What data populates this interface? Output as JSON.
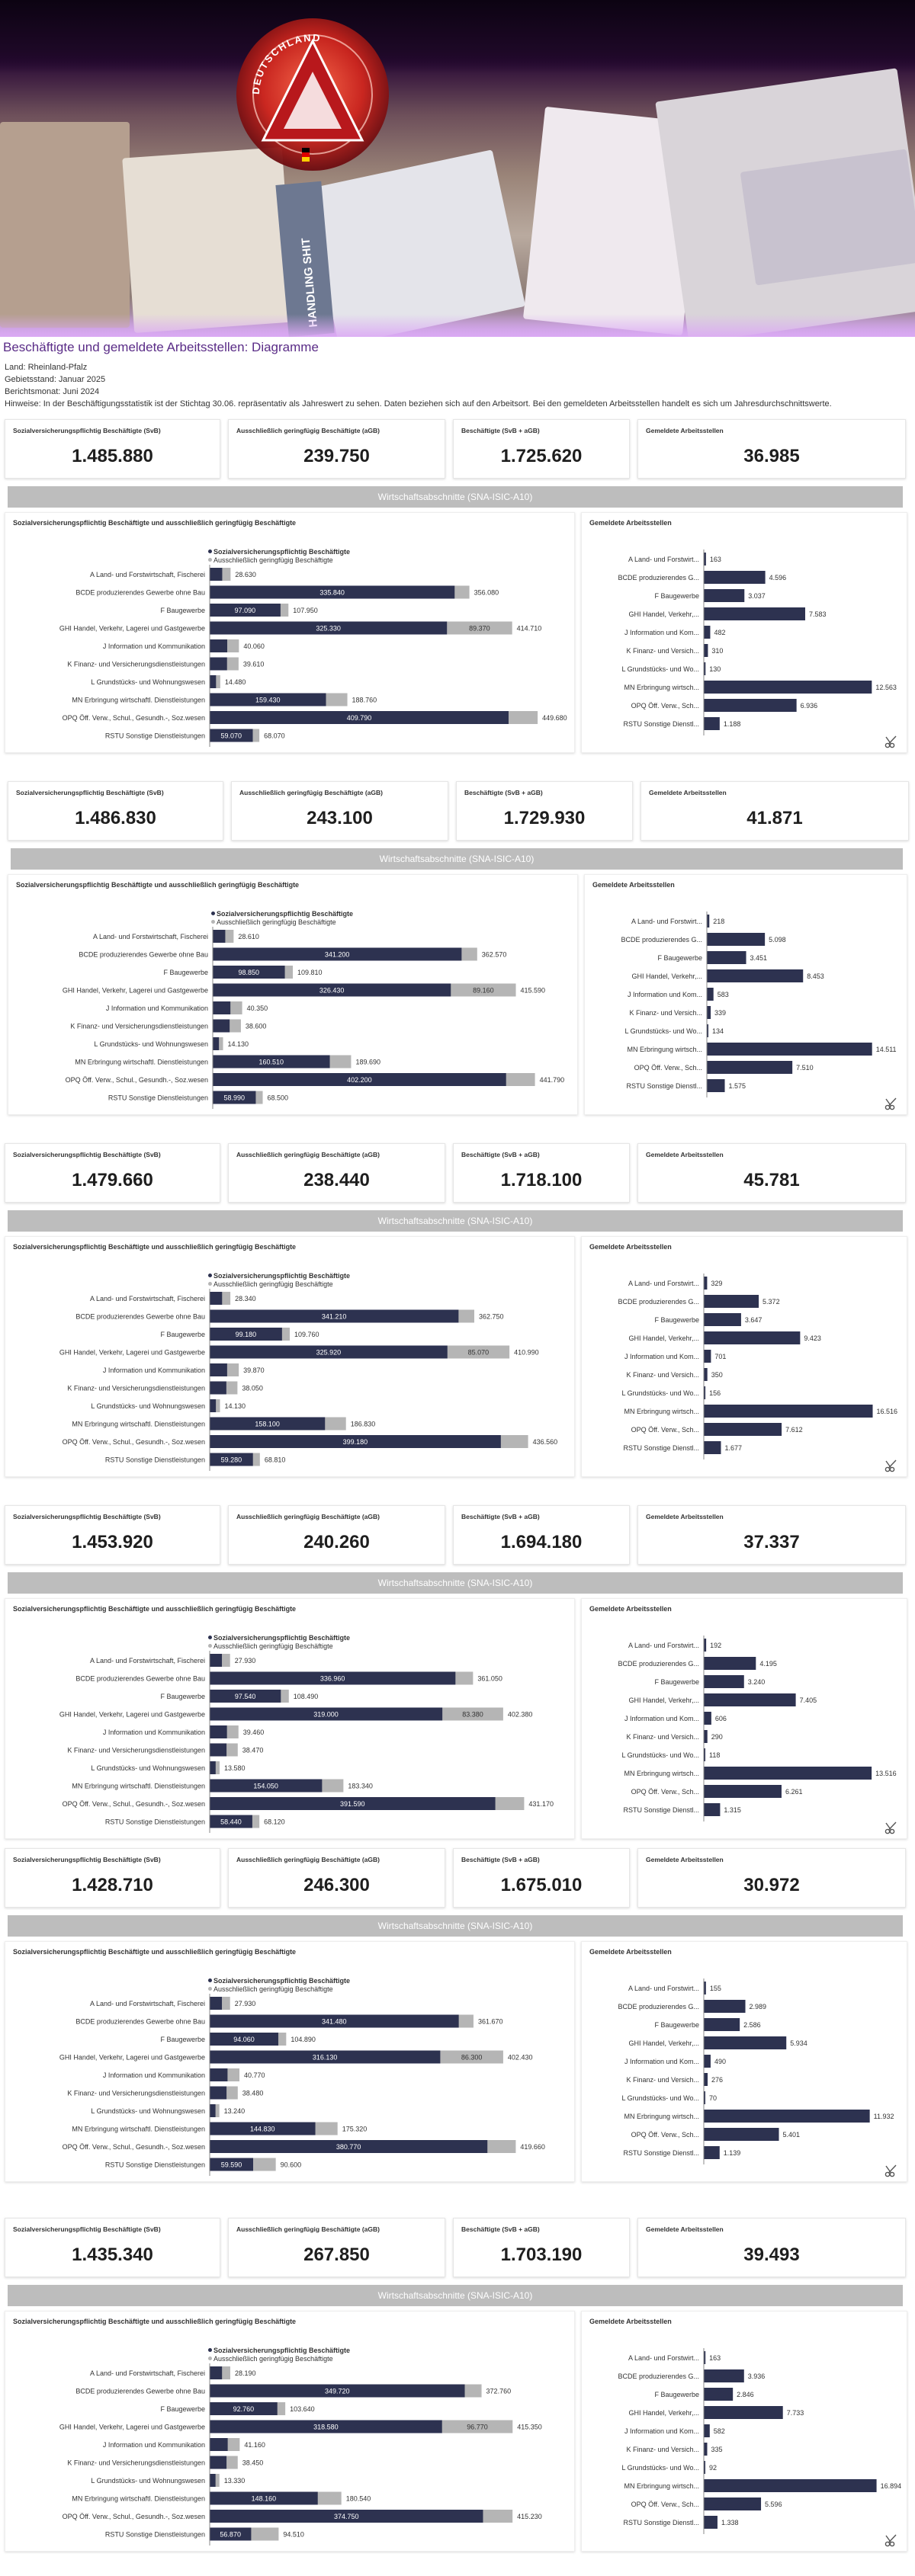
{
  "page": {
    "title": "Beschäftigte und gemeldete Arbeitsstellen: Diagramme",
    "meta": [
      "Land: Rheinland-Pfalz",
      "Gebietsstand: Januar 2025",
      "Berichtsmonat: Juni 2024",
      "Hinweise: In der Beschäftigungsstatistik ist der Stichtag 30.06. repräsentativ als Jahreswert zu sehen. Daten beziehen sich auf den Arbeitsort. Bei den gemeldeten Arbeitsstellen handelt es sich um Jahresdurchschnittswerte."
    ],
    "banner_text": {
      "side_sign": "HANDLING SHIT",
      "logo_ring": "DEUTSCHLAND"
    }
  },
  "kpi_labels": [
    "Sozialversicherungspflichtig Beschäftigte (SvB)",
    "Ausschließlich geringfügig Beschäftigte (aGB)",
    "Beschäftigte (SvB + aGB)",
    "Gemeldete Arbeitsstellen"
  ],
  "section_title": "Wirtschaftsabschnitte (SNA-ISIC-A10)",
  "left_chart_title": "Sozialversicherungspflichtig Beschäftigte und ausschließlich geringfügig Beschäftigte",
  "right_chart_title": "Gemeldete Arbeitsstellen",
  "legend": [
    "Sozialversicherungspflichtig Beschäftigte",
    "Ausschließlich geringfügig Beschäftigte"
  ],
  "colors": {
    "svb": "#2d3250",
    "agb": "#b5b5b5",
    "accent_title": "#5a2c87"
  },
  "icons": [
    "scissors-icon",
    "logo-emblem"
  ],
  "chart_data": [
    {
      "type": "bar",
      "kpi": [
        "1.485.880",
        "239.750",
        "1.725.620",
        "36.985"
      ],
      "categories": [
        "A Land- und Forstwirtschaft, Fischerei",
        "BCDE produzierendes Gewerbe ohne Bau",
        "F Baugewerbe",
        "GHI Handel, Verkehr, Lagerei und Gastgewerbe",
        "J Information und Kommunikation",
        "K Finanz- und Versicherungsdienstleistungen",
        "L Grundstücks- und Wohnungswesen",
        "MN Erbringung wirtschaftl. Dienstleistungen",
        "OPQ Öff. Verw., Schul., Gesundh.-, Soz.wesen",
        "RSTU Sonstige Dienstleistungen"
      ],
      "svb": [
        null,
        335840,
        97090,
        325330,
        null,
        null,
        null,
        159430,
        409790,
        59070
      ],
      "totals": [
        28630,
        356080,
        107950,
        414710,
        40060,
        39610,
        14480,
        188760,
        449680,
        68070
      ],
      "agb_labels": [
        null,
        null,
        null,
        89370,
        null,
        null,
        null,
        null,
        null,
        null
      ],
      "jobs_categories": [
        "A Land- und Forstwirt...",
        "BCDE produzierendes G...",
        "F Baugewerbe",
        "GHI Handel, Verkehr,...",
        "J Information und Kom...",
        "K Finanz- und Versich...",
        "L Grundstücks- und Wo...",
        "MN Erbringung wirtsch...",
        "OPQ Öff. Verw., Sch...",
        "RSTU Sonstige Dienstl..."
      ],
      "jobs": [
        163,
        4596,
        3037,
        7583,
        482,
        310,
        130,
        12563,
        6936,
        1188
      ],
      "xlim": [
        0,
        460000
      ],
      "jobs_xlim": [
        0,
        13000
      ]
    },
    {
      "type": "bar",
      "kpi": [
        "1.486.830",
        "243.100",
        "1.729.930",
        "41.871"
      ],
      "categories": [
        "A Land- und Forstwirtschaft, Fischerei",
        "BCDE produzierendes Gewerbe ohne Bau",
        "F Baugewerbe",
        "GHI Handel, Verkehr, Lagerei und Gastgewerbe",
        "J Information und Kommunikation",
        "K Finanz- und Versicherungsdienstleistungen",
        "L Grundstücks- und Wohnungswesen",
        "MN Erbringung wirtschaftl. Dienstleistungen",
        "OPQ Öff. Verw., Schul., Gesundh.-, Soz.wesen",
        "RSTU Sonstige Dienstleistungen"
      ],
      "svb": [
        null,
        341200,
        98850,
        326430,
        null,
        null,
        null,
        160510,
        402200,
        58990
      ],
      "totals": [
        28610,
        362570,
        109810,
        415590,
        40350,
        38600,
        14130,
        189690,
        441790,
        68500
      ],
      "agb_labels": [
        null,
        null,
        null,
        89160,
        null,
        null,
        null,
        null,
        null,
        null
      ],
      "jobs_categories": [
        "A Land- und Forstwirt...",
        "BCDE produzierendes G...",
        "F Baugewerbe",
        "GHI Handel, Verkehr,...",
        "J Information und Kom...",
        "K Finanz- und Versich...",
        "L Grundstücks- und Wo...",
        "MN Erbringung wirtsch...",
        "OPQ Öff. Verw., Sch...",
        "RSTU Sonstige Dienstl..."
      ],
      "jobs": [
        218,
        5098,
        3451,
        8453,
        583,
        339,
        134,
        14511,
        7510,
        1575
      ],
      "xlim": [
        0,
        460000
      ],
      "jobs_xlim": [
        0,
        15000
      ]
    },
    {
      "type": "bar",
      "kpi": [
        "1.479.660",
        "238.440",
        "1.718.100",
        "45.781"
      ],
      "categories": [
        "A Land- und Forstwirtschaft, Fischerei",
        "BCDE produzierendes Gewerbe ohne Bau",
        "F Baugewerbe",
        "GHI Handel, Verkehr, Lagerei und Gastgewerbe",
        "J Information und Kommunikation",
        "K Finanz- und Versicherungsdienstleistungen",
        "L Grundstücks- und Wohnungswesen",
        "MN Erbringung wirtschaftl. Dienstleistungen",
        "OPQ Öff. Verw., Schul., Gesundh.-, Soz.wesen",
        "RSTU Sonstige Dienstleistungen"
      ],
      "svb": [
        null,
        341210,
        99180,
        325920,
        null,
        null,
        null,
        158100,
        399180,
        59280
      ],
      "totals": [
        28340,
        362750,
        109760,
        410990,
        39870,
        38050,
        14130,
        186830,
        436560,
        68810
      ],
      "agb_labels": [
        null,
        null,
        null,
        85070,
        null,
        null,
        null,
        null,
        null,
        null
      ],
      "jobs_categories": [
        "A Land- und Forstwirt...",
        "BCDE produzierendes G...",
        "F Baugewerbe",
        "GHI Handel, Verkehr,...",
        "J Information und Kom...",
        "K Finanz- und Versich...",
        "L Grundstücks- und Wo...",
        "MN Erbringung wirtsch...",
        "OPQ Öff. Verw., Sch...",
        "RSTU Sonstige Dienstl..."
      ],
      "jobs": [
        329,
        5372,
        3647,
        9423,
        701,
        350,
        156,
        16516,
        7612,
        1677
      ],
      "xlim": [
        0,
        460000
      ],
      "jobs_xlim": [
        0,
        17000
      ]
    },
    {
      "type": "bar",
      "kpi": [
        "1.453.920",
        "240.260",
        "1.694.180",
        "37.337"
      ],
      "categories": [
        "A Land- und Forstwirtschaft, Fischerei",
        "BCDE produzierendes Gewerbe ohne Bau",
        "F Baugewerbe",
        "GHI Handel, Verkehr, Lagerei und Gastgewerbe",
        "J Information und Kommunikation",
        "K Finanz- und Versicherungsdienstleistungen",
        "L Grundstücks- und Wohnungswesen",
        "MN Erbringung wirtschaftl. Dienstleistungen",
        "OPQ Öff. Verw., Schul., Gesundh.-, Soz.wesen",
        "RSTU Sonstige Dienstleistungen"
      ],
      "svb": [
        null,
        336960,
        97540,
        319000,
        null,
        null,
        null,
        154050,
        391590,
        58440
      ],
      "totals": [
        27930,
        361050,
        108490,
        402380,
        39460,
        38470,
        13580,
        183340,
        431170,
        68120
      ],
      "agb_labels": [
        null,
        null,
        null,
        83380,
        null,
        null,
        null,
        null,
        null,
        null
      ],
      "jobs_categories": [
        "A Land- und Forstwirt...",
        "BCDE produzierendes G...",
        "F Baugewerbe",
        "GHI Handel, Verkehr,...",
        "J Information und Kom...",
        "K Finanz- und Versich...",
        "L Grundstücks- und Wo...",
        "MN Erbringung wirtsch...",
        "OPQ Öff. Verw., Sch...",
        "RSTU Sonstige Dienstl..."
      ],
      "jobs": [
        192,
        4195,
        3240,
        7405,
        606,
        290,
        118,
        13516,
        6261,
        1315
      ],
      "xlim": [
        0,
        460000
      ],
      "jobs_xlim": [
        0,
        14000
      ]
    },
    {
      "type": "bar",
      "kpi": [
        "1.428.710",
        "246.300",
        "1.675.010",
        "30.972"
      ],
      "categories": [
        "A Land- und Forstwirtschaft, Fischerei",
        "BCDE produzierendes Gewerbe ohne Bau",
        "F Baugewerbe",
        "GHI Handel, Verkehr, Lagerei und Gastgewerbe",
        "J Information und Kommunikation",
        "K Finanz- und Versicherungsdienstleistungen",
        "L Grundstücks- und Wohnungswesen",
        "MN Erbringung wirtschaftl. Dienstleistungen",
        "OPQ Öff. Verw., Schul., Gesundh.-, Soz.wesen",
        "RSTU Sonstige Dienstleistungen"
      ],
      "svb": [
        null,
        341480,
        94060,
        316130,
        null,
        null,
        null,
        144830,
        380770,
        59590
      ],
      "totals": [
        27930,
        361670,
        104890,
        402430,
        40770,
        38480,
        13240,
        175320,
        419660,
        90600
      ],
      "agb_labels": [
        null,
        null,
        null,
        86300,
        null,
        null,
        null,
        null,
        null,
        null
      ],
      "jobs_categories": [
        "A Land- und Forstwirt...",
        "BCDE produzierendes G...",
        "F Baugewerbe",
        "GHI Handel, Verkehr,...",
        "J Information und Kom...",
        "K Finanz- und Versich...",
        "L Grundstücks- und Wo...",
        "MN Erbringung wirtsch...",
        "OPQ Öff. Verw., Sch...",
        "RSTU Sonstige Dienstl..."
      ],
      "jobs": [
        155,
        2989,
        2586,
        5934,
        490,
        276,
        70,
        11932,
        5401,
        1139
      ],
      "xlim": [
        0,
        460000
      ],
      "jobs_xlim": [
        0,
        12500
      ]
    },
    {
      "type": "bar",
      "kpi": [
        "1.435.340",
        "267.850",
        "1.703.190",
        "39.493"
      ],
      "categories": [
        "A Land- und Forstwirtschaft, Fischerei",
        "BCDE produzierendes Gewerbe ohne Bau",
        "F Baugewerbe",
        "GHI Handel, Verkehr, Lagerei und Gastgewerbe",
        "J Information und Kommunikation",
        "K Finanz- und Versicherungsdienstleistungen",
        "L Grundstücks- und Wohnungswesen",
        "MN Erbringung wirtschaftl. Dienstleistungen",
        "OPQ Öff. Verw., Schul., Gesundh.-, Soz.wesen",
        "RSTU Sonstige Dienstleistungen"
      ],
      "svb": [
        null,
        349720,
        92760,
        318580,
        null,
        null,
        null,
        148160,
        374750,
        56870
      ],
      "totals": [
        28190,
        372760,
        103640,
        415350,
        41160,
        38450,
        13330,
        180540,
        415230,
        94510
      ],
      "agb_labels": [
        null,
        null,
        null,
        96770,
        null,
        null,
        null,
        null,
        null,
        null
      ],
      "jobs_categories": [
        "A Land- und Forstwirt...",
        "BCDE produzierendes G...",
        "F Baugewerbe",
        "GHI Handel, Verkehr,...",
        "J Information und Kom...",
        "K Finanz- und Versich...",
        "L Grundstücks- und Wo...",
        "MN Erbringung wirtsch...",
        "OPQ Öff. Verw., Sch...",
        "RSTU Sonstige Dienstl..."
      ],
      "jobs": [
        163,
        3936,
        2846,
        7733,
        582,
        335,
        92,
        16894,
        5596,
        1338
      ],
      "xlim": [
        0,
        460000
      ],
      "jobs_xlim": [
        0,
        17000
      ]
    }
  ]
}
